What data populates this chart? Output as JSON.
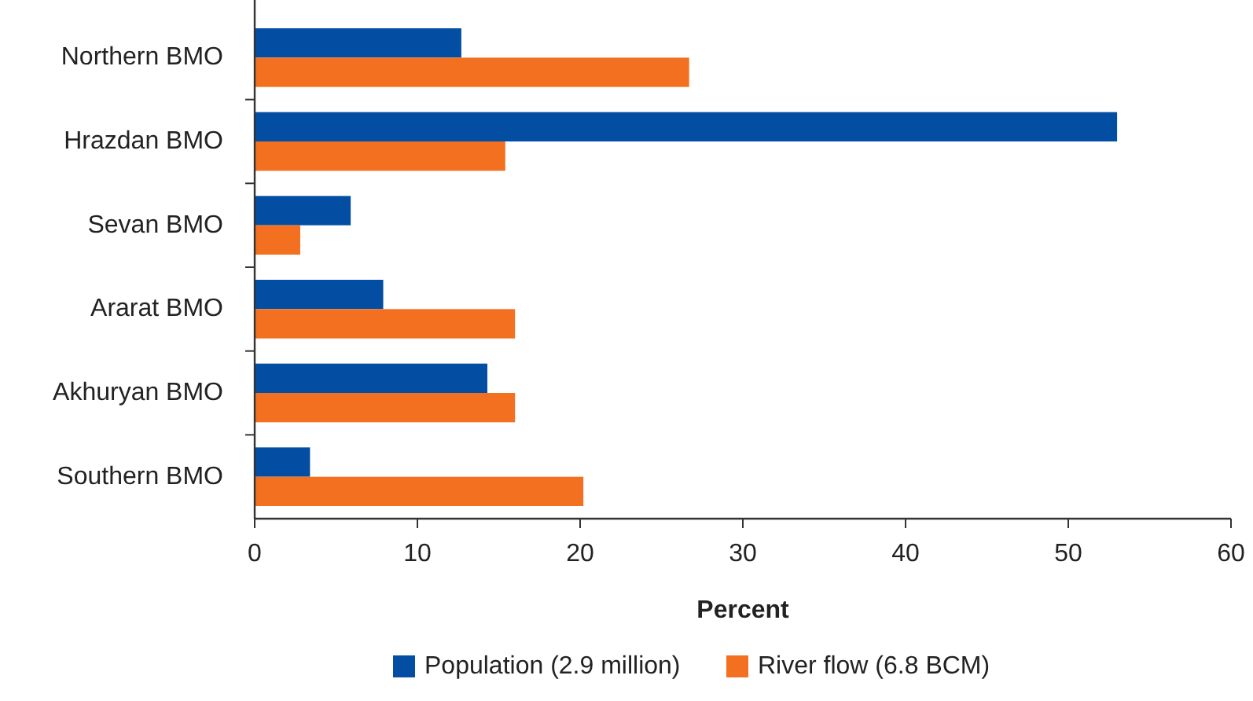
{
  "chart_data": {
    "type": "bar",
    "orientation": "horizontal",
    "xlabel": "Percent",
    "categories": [
      "Northern BMO",
      "Hrazdan BMO",
      "Sevan BMO",
      "Ararat BMO",
      "Akhuryan BMO",
      "Southern BMO"
    ],
    "series": [
      {
        "name": "Population (2.9 million)",
        "color": "#034ea2",
        "values": [
          12.7,
          53,
          5.9,
          7.9,
          14.3,
          3.4
        ]
      },
      {
        "name": "River flow (6.8 BCM)",
        "color": "#f37021",
        "values": [
          26.7,
          15.4,
          2.8,
          16,
          16,
          20.2
        ]
      }
    ],
    "xlim": [
      0,
      60
    ],
    "xticks": [
      0,
      10,
      20,
      30,
      40,
      50,
      60
    ],
    "grid": false,
    "legend": "bottom"
  }
}
